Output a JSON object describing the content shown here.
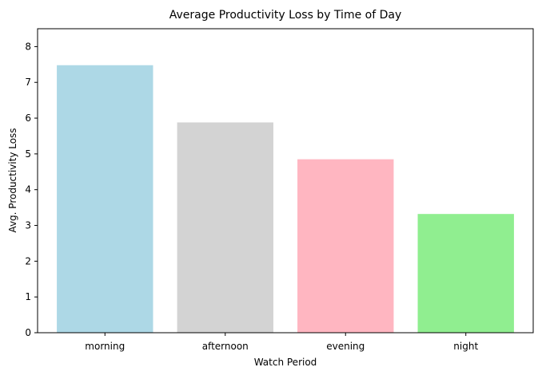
{
  "chart_data": {
    "type": "bar",
    "title": "Average Productivity Loss by Time of Day",
    "xlabel": "Watch Period",
    "ylabel": "Avg. Productivity Loss",
    "categories": [
      "morning",
      "afternoon",
      "evening",
      "night"
    ],
    "values": [
      7.48,
      5.88,
      4.85,
      3.32
    ],
    "colors": [
      "#add8e6",
      "#d3d3d3",
      "#ffb6c1",
      "#90ee90"
    ],
    "ylim": [
      0,
      8.5
    ],
    "yticks": [
      "0",
      "1",
      "2",
      "3",
      "4",
      "5",
      "6",
      "7",
      "8"
    ],
    "grid": false,
    "legend": "none"
  }
}
